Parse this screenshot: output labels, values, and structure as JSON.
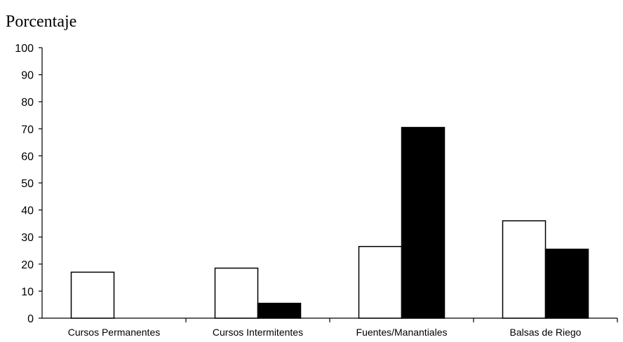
{
  "chart_data": {
    "type": "bar",
    "ylabel": "Porcentaje",
    "xlabel": "",
    "categories": [
      "Cursos Permanentes",
      "Cursos Intermitentes",
      "Fuentes/Manantiales",
      "Balsas de Riego"
    ],
    "series": [
      {
        "fill": "#ffffff",
        "values": [
          17,
          18.5,
          26.5,
          36
        ]
      },
      {
        "fill": "#000000",
        "values": [
          0,
          5.5,
          70.5,
          25.5
        ]
      }
    ],
    "ylim": [
      0,
      100
    ],
    "yticks": [
      0,
      10,
      20,
      30,
      40,
      50,
      60,
      70,
      80,
      90,
      100
    ],
    "grid": false,
    "legend": "none"
  }
}
